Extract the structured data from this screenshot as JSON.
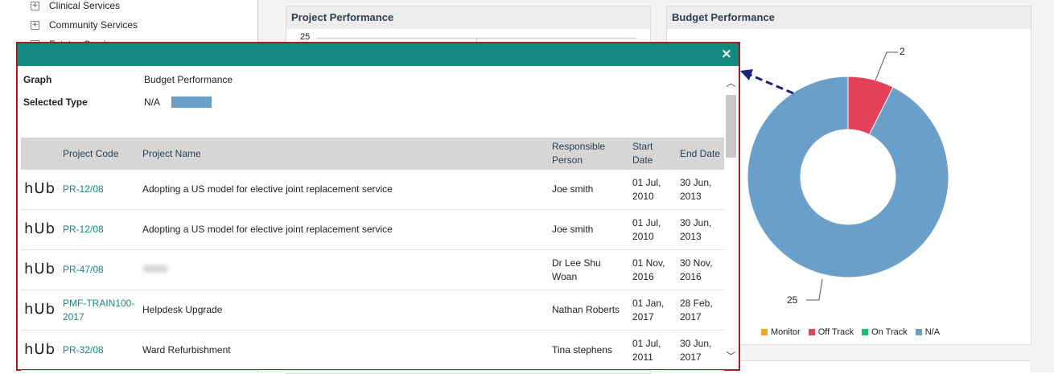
{
  "tree": {
    "items": [
      {
        "label": "Clinical Services"
      },
      {
        "label": "Community Services"
      },
      {
        "label": "Estates Services"
      }
    ]
  },
  "project_performance": {
    "title": "Project Performance",
    "axis_top": "25"
  },
  "budget_performance": {
    "title": "Budget Performance",
    "callout_top": "2",
    "callout_bottom": "25",
    "legend": [
      {
        "label": "Monitor",
        "color": "#f5a623"
      },
      {
        "label": "Off Track",
        "color": "#e4405a"
      },
      {
        "label": "On Track",
        "color": "#1fbf6b"
      },
      {
        "label": "N/A",
        "color": "#6a9fc9"
      }
    ]
  },
  "chart_data": {
    "type": "pie",
    "title": "Budget Performance",
    "categories": [
      "Monitor",
      "Off Track",
      "On Track",
      "N/A"
    ],
    "values": [
      0,
      2,
      0,
      25
    ],
    "colors": [
      "#f5a623",
      "#e4405a",
      "#1fbf6b",
      "#6a9fc9"
    ],
    "legend": "bottom"
  },
  "modal": {
    "close_label": "×",
    "graph_label": "Graph",
    "graph_value": "Budget Performance",
    "type_label": "Selected Type",
    "type_value": "N/A",
    "type_color": "#6a9fc9",
    "columns": [
      "Project Code",
      "Project Name",
      "Responsible Person",
      "Start Date",
      "End Date"
    ],
    "rows": [
      {
        "logo": "hUb",
        "code": "PR-12/08",
        "name": "Adopting a US model for elective joint replacement service",
        "person": "Joe smith",
        "start": "01 Jul, 2010",
        "end": "30 Jun, 2013"
      },
      {
        "logo": "hUb",
        "code": "PR-12/08",
        "name": "Adopting a US model for elective joint replacement service",
        "person": "Joe smith",
        "start": "01 Jul, 2010",
        "end": "30 Jun, 2013"
      },
      {
        "logo": "hUb",
        "code": "PR-47/08",
        "name": "",
        "person": "Dr Lee Shu Woan",
        "start": "01 Nov, 2016",
        "end": "30 Nov, 2016"
      },
      {
        "logo": "hUb",
        "code": "PMF-TRAIN100-2017",
        "name": "Helpdesk Upgrade",
        "person": "Nathan Roberts",
        "start": "01 Jan, 2017",
        "end": "28 Feb, 2017"
      },
      {
        "logo": "hUb",
        "code": "PR-32/08",
        "name": "Ward Refurbishment",
        "person": "Tina stephens",
        "start": "01 Jul, 2011",
        "end": "30 Jun, 2017"
      }
    ]
  }
}
